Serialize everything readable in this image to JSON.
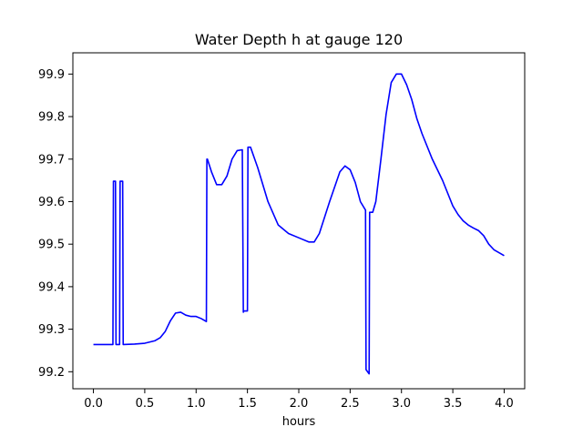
{
  "chart_data": {
    "type": "line",
    "title": "Water Depth h at gauge 120",
    "xlabel": "hours",
    "ylabel": "",
    "xlim": [
      -0.2,
      4.2
    ],
    "ylim": [
      99.16,
      99.95
    ],
    "xticks": [
      0.0,
      0.5,
      1.0,
      1.5,
      2.0,
      2.5,
      3.0,
      3.5,
      4.0
    ],
    "xtick_labels": [
      "0.0",
      "0.5",
      "1.0",
      "1.5",
      "2.0",
      "2.5",
      "3.0",
      "3.5",
      "4.0"
    ],
    "yticks": [
      99.2,
      99.3,
      99.4,
      99.5,
      99.6,
      99.7,
      99.8,
      99.9
    ],
    "ytick_labels": [
      "99.2",
      "99.3",
      "99.4",
      "99.5",
      "99.6",
      "99.7",
      "99.8",
      "99.9"
    ],
    "grid": false,
    "series": [
      {
        "color": "#0000ff",
        "x": [
          0.0,
          0.19,
          0.195,
          0.215,
          0.22,
          0.255,
          0.26,
          0.285,
          0.29,
          0.4,
          0.5,
          0.6,
          0.65,
          0.7,
          0.75,
          0.8,
          0.85,
          0.9,
          0.95,
          1.0,
          1.05,
          1.1,
          1.105,
          1.11,
          1.15,
          1.2,
          1.25,
          1.3,
          1.35,
          1.4,
          1.45,
          1.46,
          1.465,
          1.5,
          1.505,
          1.53,
          1.6,
          1.7,
          1.8,
          1.9,
          2.0,
          2.1,
          2.15,
          2.2,
          2.3,
          2.4,
          2.45,
          2.5,
          2.55,
          2.6,
          2.65,
          2.655,
          2.685,
          2.69,
          2.72,
          2.75,
          2.8,
          2.85,
          2.9,
          2.95,
          3.0,
          3.05,
          3.1,
          3.15,
          3.2,
          3.3,
          3.4,
          3.5,
          3.55,
          3.6,
          3.65,
          3.7,
          3.75,
          3.8,
          3.85,
          3.9,
          3.95,
          4.0
        ],
        "y": [
          99.264,
          99.264,
          99.648,
          99.648,
          99.264,
          99.264,
          99.648,
          99.648,
          99.264,
          99.265,
          99.267,
          99.273,
          99.28,
          99.295,
          99.32,
          99.338,
          99.34,
          99.333,
          99.33,
          99.33,
          99.325,
          99.318,
          99.7,
          99.7,
          99.67,
          99.64,
          99.64,
          99.66,
          99.7,
          99.72,
          99.722,
          99.34,
          99.343,
          99.343,
          99.728,
          99.728,
          99.68,
          99.6,
          99.545,
          99.525,
          99.515,
          99.505,
          99.505,
          99.525,
          99.6,
          99.67,
          99.684,
          99.675,
          99.645,
          99.6,
          99.58,
          99.205,
          99.195,
          99.575,
          99.575,
          99.6,
          99.7,
          99.805,
          99.88,
          99.9,
          99.9,
          99.875,
          99.84,
          99.795,
          99.76,
          99.7,
          99.65,
          99.59,
          99.57,
          99.555,
          99.545,
          99.538,
          99.532,
          99.52,
          99.5,
          99.487,
          99.48,
          99.473
        ]
      }
    ]
  }
}
